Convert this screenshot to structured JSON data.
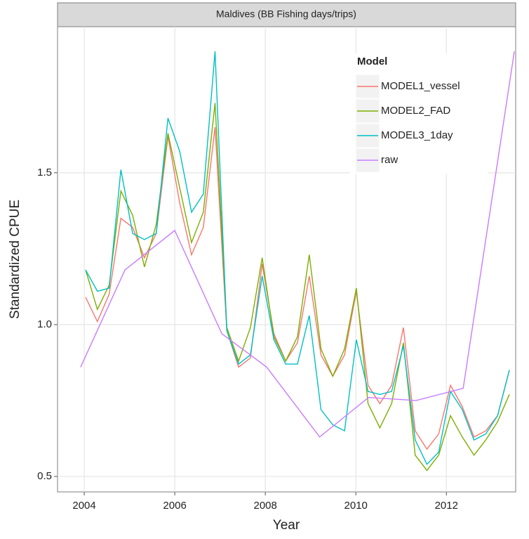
{
  "chart_data": {
    "type": "line",
    "title": "Maldives (BB Fishing days/trips)",
    "x_label": "Year",
    "y_label": "Standardized CPUE",
    "legend_title": "Model",
    "legend_position": "top-right",
    "grid": true,
    "xlim": [
      2003.41,
      2013.53
    ],
    "xticks": [
      2004,
      2006,
      2008,
      2010,
      2012
    ],
    "ylim": [
      0.449,
      1.981
    ],
    "yticks": [
      {
        "value": 0.5,
        "label": "0.5"
      },
      {
        "value": 1.0,
        "label": "1.0"
      },
      {
        "value": 1.5,
        "label": "1.5"
      }
    ],
    "x": [
      2004.03,
      2004.29,
      2004.55,
      2004.81,
      2005.07,
      2005.33,
      2005.59,
      2005.85,
      2006.11,
      2006.37,
      2006.63,
      2006.89,
      2007.15,
      2007.41,
      2007.67,
      2007.93,
      2008.19,
      2008.45,
      2008.71,
      2008.97,
      2009.23,
      2009.49,
      2009.75,
      2010.01,
      2010.27,
      2010.53,
      2010.79,
      2011.05,
      2011.31,
      2011.57,
      2011.83,
      2012.09,
      2012.35,
      2012.61,
      2012.87,
      2013.13,
      2013.39
    ],
    "series": [
      {
        "name": "MODEL1_vessel",
        "color": "#F8766D",
        "values": [
          1.09,
          1.01,
          1.1,
          1.35,
          1.32,
          1.22,
          1.3,
          1.62,
          1.4,
          1.23,
          1.32,
          1.65,
          0.98,
          0.86,
          0.89,
          1.2,
          0.97,
          0.88,
          0.94,
          1.16,
          0.9,
          0.83,
          0.9,
          1.11,
          0.8,
          0.74,
          0.8,
          0.99,
          0.65,
          0.59,
          0.64,
          0.8,
          0.73,
          0.63,
          0.65,
          0.7,
          0.85
        ]
      },
      {
        "name": "MODEL2_FAD",
        "color": "#7CAE00",
        "values": [
          1.18,
          1.05,
          1.13,
          1.44,
          1.36,
          1.19,
          1.33,
          1.63,
          1.45,
          1.27,
          1.37,
          1.73,
          0.99,
          0.88,
          0.99,
          1.22,
          0.96,
          0.88,
          0.96,
          1.23,
          0.92,
          0.83,
          0.92,
          1.12,
          0.74,
          0.66,
          0.74,
          0.94,
          0.57,
          0.52,
          0.57,
          0.7,
          0.63,
          0.57,
          0.62,
          0.68,
          0.77
        ]
      },
      {
        "name": "MODEL3_1day",
        "color": "#00BFC4",
        "values": [
          1.18,
          1.11,
          1.12,
          1.51,
          1.3,
          1.28,
          1.3,
          1.68,
          1.57,
          1.37,
          1.43,
          1.9,
          0.98,
          0.87,
          0.9,
          1.16,
          0.95,
          0.87,
          0.87,
          1.03,
          0.72,
          0.67,
          0.65,
          0.95,
          0.78,
          0.77,
          0.78,
          0.93,
          0.62,
          0.54,
          0.58,
          0.78,
          0.72,
          0.62,
          0.64,
          0.7,
          0.85
        ]
      },
      {
        "name": "raw",
        "color": "#C77CFF",
        "x": [
          2003.92,
          2004.9,
          2006.0,
          2007.04,
          2008.03,
          2009.2,
          2010.28,
          2011.33,
          2012.37,
          2013.5
        ],
        "values": [
          0.86,
          1.18,
          1.31,
          0.97,
          0.86,
          0.63,
          0.76,
          0.75,
          0.79,
          1.9
        ]
      }
    ]
  }
}
